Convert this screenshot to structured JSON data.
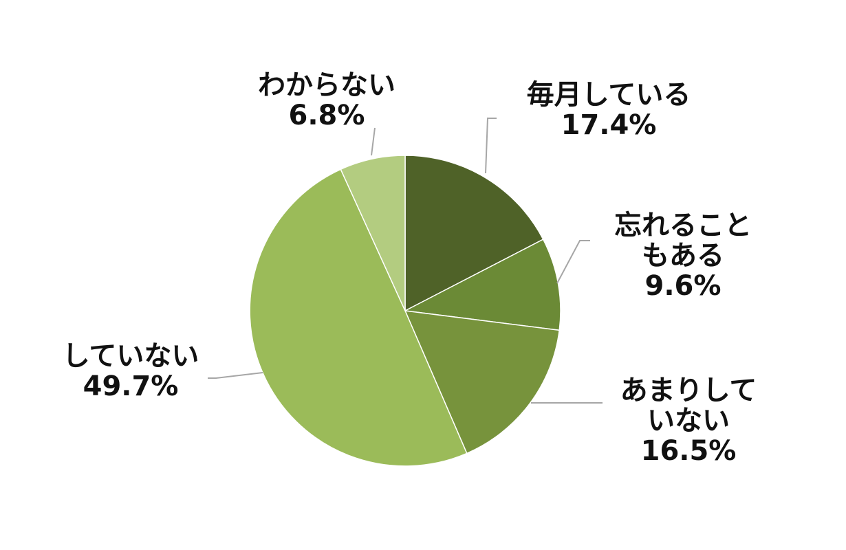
{
  "chart_data": {
    "type": "pie",
    "start_angle_deg": 0,
    "direction": "clockwise",
    "slices": [
      {
        "label_lines": [
          "毎月している"
        ],
        "value": 17.4,
        "value_label": "17.4%",
        "color": "#4f6228"
      },
      {
        "label_lines": [
          "忘れること",
          "もある"
        ],
        "value": 9.6,
        "value_label": "9.6%",
        "color": "#6b8a36"
      },
      {
        "label_lines": [
          "あまりして",
          "いない"
        ],
        "value": 16.5,
        "value_label": "16.5%",
        "color": "#77933c"
      },
      {
        "label_lines": [
          "していない"
        ],
        "value": 49.7,
        "value_label": "49.7%",
        "color": "#9bbb59"
      },
      {
        "label_lines": [
          "わからない"
        ],
        "value": 6.8,
        "value_label": "6.8%",
        "color": "#b3cc80"
      }
    ],
    "leader_line_color": "#a6a6a6",
    "slice_border_color": "#ffffff"
  }
}
